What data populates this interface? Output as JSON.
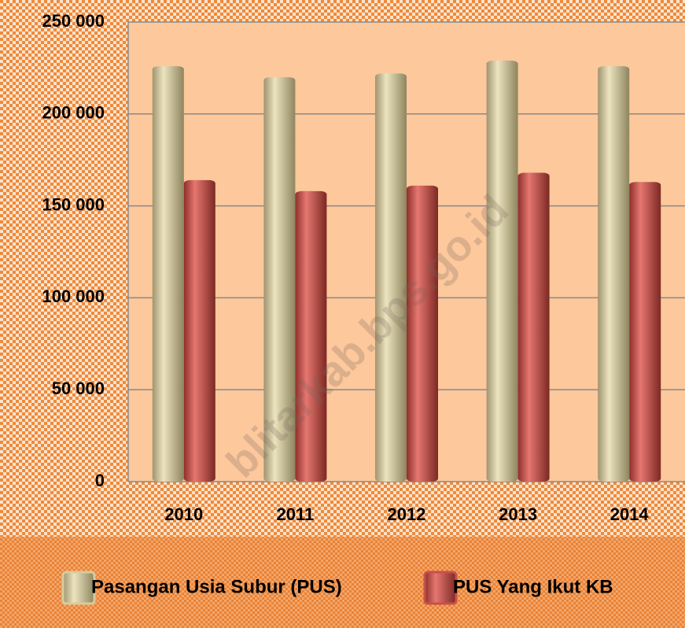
{
  "chart_data": {
    "type": "bar",
    "categories": [
      "2010",
      "2011",
      "2012",
      "2013",
      "2014"
    ],
    "series": [
      {
        "name": "Pasangan Usia Subur (PUS)",
        "color": "#d6cc9c",
        "values": [
          226000,
          220000,
          222000,
          229000,
          226000
        ]
      },
      {
        "name": "PUS Yang Ikut KB",
        "color": "#c9504a",
        "values": [
          164000,
          158000,
          161000,
          168000,
          163000
        ]
      }
    ],
    "ylim": [
      0,
      250000
    ],
    "yticks": [
      {
        "value": 0,
        "label": "0"
      },
      {
        "value": 50000,
        "label": "50 000"
      },
      {
        "value": 100000,
        "label": "100 000"
      },
      {
        "value": 150000,
        "label": "150 000"
      },
      {
        "value": 200000,
        "label": "200 000"
      },
      {
        "value": 250000,
        "label": "250 000"
      }
    ],
    "grid": true,
    "legend": "bottom",
    "watermark": "blitarkab.bps.go.id"
  }
}
